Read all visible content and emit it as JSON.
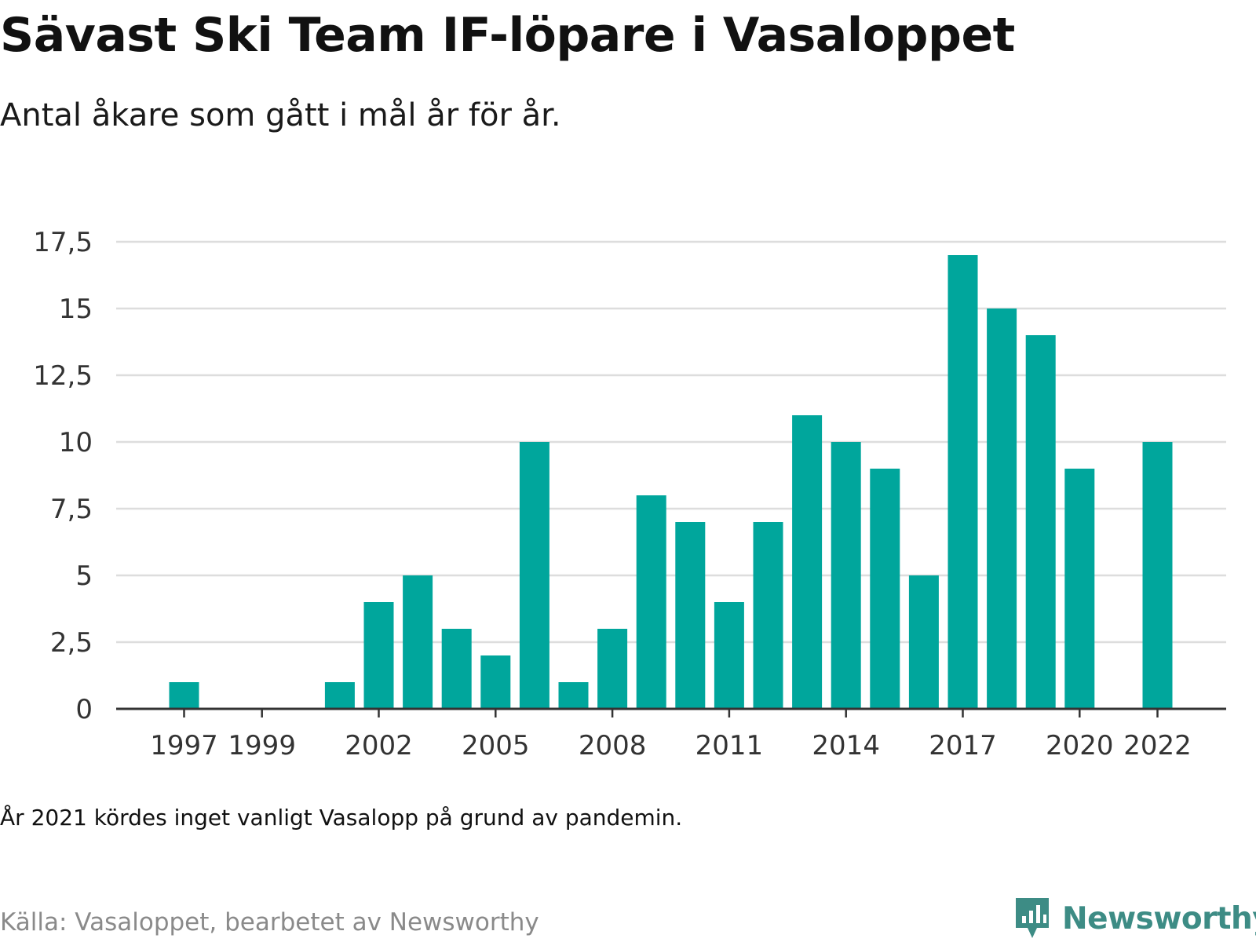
{
  "header": {
    "title": "Sävast Ski Team IF-löpare i Vasaloppet",
    "subtitle": "Antal åkare som gått i mål år för år."
  },
  "footer": {
    "note": "År 2021 kördes inget vanligt Vasalopp på grund av pandemin.",
    "source": "Källa: Vasaloppet, bearbetet av Newsworthy",
    "logo_text": "Newsworthy",
    "logo_icon": "bar-chart-speech-bubble-icon"
  },
  "colors": {
    "bar": "#00a69c",
    "grid": "#dddddd",
    "axis": "#333333",
    "logo": "#3d8c85"
  },
  "chart_data": {
    "type": "bar",
    "categories": [
      "1997",
      "1998",
      "1999",
      "2000",
      "2001",
      "2002",
      "2003",
      "2004",
      "2005",
      "2006",
      "2007",
      "2008",
      "2009",
      "2010",
      "2011",
      "2012",
      "2013",
      "2014",
      "2015",
      "2016",
      "2017",
      "2018",
      "2019",
      "2020",
      "2021",
      "2022"
    ],
    "values": [
      1,
      0,
      0,
      0,
      1,
      4,
      5,
      3,
      2,
      10,
      1,
      3,
      8,
      7,
      4,
      7,
      11,
      10,
      9,
      5,
      17,
      15,
      14,
      9,
      null,
      10
    ],
    "x_tick_labels": [
      "1997",
      "1999",
      "2002",
      "2005",
      "2008",
      "2011",
      "2014",
      "2017",
      "2020",
      "2022"
    ],
    "y_ticks": [
      0,
      2.5,
      5,
      7.5,
      10,
      12.5,
      15,
      17.5
    ],
    "y_tick_labels": [
      "0",
      "2,5",
      "5",
      "7,5",
      "10",
      "12,5",
      "15",
      "17,5"
    ],
    "ylim": [
      0,
      17.5
    ],
    "grid": true,
    "legend": "none"
  }
}
